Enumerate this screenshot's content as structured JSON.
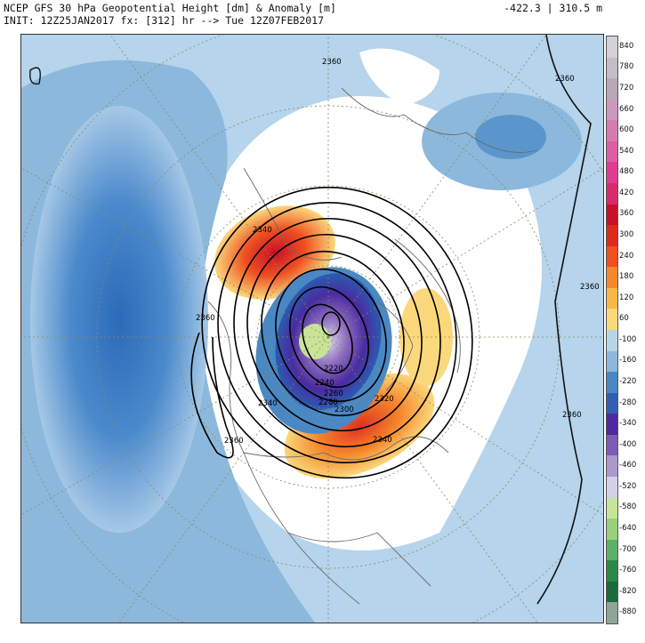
{
  "header": {
    "title_line1": "NCEP GFS 30 hPa Geopotential Height [dm] & Anomaly [m]",
    "title_line2": "INIT: 12Z25JAN2017  fx: [312] hr --> Tue 12Z07FEB2017",
    "stats": "-422.3 | 310.5 m"
  },
  "map": {
    "projection": "north-polar-stereographic",
    "contour_labels": [
      "2360",
      "2360",
      "2360",
      "2360",
      "2340",
      "2220",
      "2240",
      "2260",
      "2280",
      "2300",
      "2320",
      "2340",
      "2340",
      "2360",
      "2360"
    ]
  },
  "colorbar": {
    "ticks": [
      "840",
      "780",
      "720",
      "660",
      "600",
      "540",
      "480",
      "420",
      "360",
      "300",
      "240",
      "180",
      "120",
      "60",
      "-100",
      "-160",
      "-220",
      "-280",
      "-340",
      "-400",
      "-460",
      "-520",
      "-580",
      "-640",
      "-700",
      "-760",
      "-820",
      "-880"
    ],
    "colors": [
      "#d4d0d8",
      "#c4bcc8",
      "#b8a8b8",
      "#cc98bc",
      "#d47cb0",
      "#dc5ea4",
      "#e03c94",
      "#d82a6e",
      "#c8102a",
      "#dc2a20",
      "#ee5020",
      "#f6882c",
      "#f8b848",
      "#fcd87c",
      "#b8d4e8",
      "#8cb8dc",
      "#4a88c4",
      "#3260b0",
      "#5028a0",
      "#7c5cb4",
      "#ac98cc",
      "#d4d0e8",
      "#c8e498",
      "#98d07c",
      "#5cb068",
      "#2c8848",
      "#1c6a3c",
      "#90a498"
    ]
  }
}
